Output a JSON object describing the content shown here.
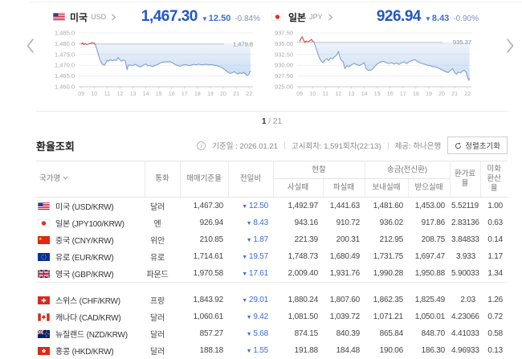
{
  "colors": {
    "price_blue": "#2257c4",
    "change_blue": "#3e6bd5",
    "pct_blue_gray": "#7f8fb5",
    "line_red": "#e0433a",
    "line_blue": "#7fa0d4",
    "fill_blue": "#9fc0e8",
    "ref_gray": "#bbbbbb"
  },
  "symbols": {
    "down_arrow": "▼"
  },
  "carousel": {
    "pagination": {
      "current": "1",
      "separator": "/",
      "total": "21"
    }
  },
  "chart_data": [
    {
      "type": "line",
      "country": "미국",
      "currency_code": "USD",
      "price": "1,467.30",
      "change": "12.50",
      "change_direction": "down",
      "change_percent": "-0.84%",
      "prev_close_label": "1,479.8",
      "prev_close": 1479.8,
      "flag": "us",
      "y_ticks": [
        "1,485.0",
        "1,480.0",
        "1,475.0",
        "1,470.0",
        "1,465.0",
        "1,460.0"
      ],
      "ylim": [
        1460,
        1485
      ],
      "x_ticks": [
        "09",
        "10",
        "11",
        "12",
        "13",
        "14",
        "15",
        "16",
        "17",
        "18",
        "19",
        "20",
        "21",
        "22"
      ],
      "xlim": [
        8.8,
        22.3
      ],
      "points": [
        [
          9.0,
          1479.9
        ],
        [
          9.1,
          1480.4
        ],
        [
          9.2,
          1479.6
        ],
        [
          9.3,
          1480.1
        ],
        [
          9.45,
          1479.5
        ],
        [
          9.6,
          1480.0
        ],
        [
          9.75,
          1480.3
        ],
        [
          9.9,
          1480.4
        ],
        [
          10.0,
          1480.2
        ],
        [
          10.1,
          1479.5
        ],
        [
          10.2,
          1477.5
        ],
        [
          10.35,
          1474.5
        ],
        [
          10.5,
          1471.8
        ],
        [
          10.65,
          1470.4
        ],
        [
          10.8,
          1470.0
        ],
        [
          10.9,
          1471.0
        ],
        [
          11.0,
          1472.4
        ],
        [
          11.1,
          1471.8
        ],
        [
          11.25,
          1472.6
        ],
        [
          11.4,
          1472.0
        ],
        [
          11.55,
          1472.5
        ],
        [
          11.7,
          1472.2
        ],
        [
          11.85,
          1473.6
        ],
        [
          11.95,
          1472.8
        ],
        [
          12.1,
          1471.9
        ],
        [
          12.25,
          1472.4
        ],
        [
          12.4,
          1472.1
        ],
        [
          12.5,
          1469.3
        ],
        [
          12.55,
          1467.9
        ],
        [
          12.65,
          1470.1
        ],
        [
          12.8,
          1470.0
        ],
        [
          13.0,
          1469.9
        ],
        [
          13.2,
          1470.4
        ],
        [
          13.4,
          1469.6
        ],
        [
          13.6,
          1469.2
        ],
        [
          13.8,
          1470.0
        ],
        [
          14.0,
          1470.6
        ],
        [
          14.15,
          1469.7
        ],
        [
          14.3,
          1469.9
        ],
        [
          14.5,
          1469.4
        ],
        [
          14.7,
          1469.8
        ],
        [
          14.9,
          1470.3
        ],
        [
          15.1,
          1471.0
        ],
        [
          15.3,
          1471.4
        ],
        [
          15.5,
          1471.6
        ],
        [
          15.7,
          1471.5
        ],
        [
          15.9,
          1471.6
        ],
        [
          16.1,
          1471.0
        ],
        [
          16.3,
          1470.2
        ],
        [
          16.5,
          1469.8
        ],
        [
          16.7,
          1469.6
        ],
        [
          16.9,
          1470.1
        ],
        [
          17.1,
          1470.3
        ],
        [
          17.3,
          1469.8
        ],
        [
          17.5,
          1470.0
        ],
        [
          17.7,
          1470.4
        ],
        [
          17.9,
          1470.2
        ],
        [
          18.1,
          1470.5
        ],
        [
          18.3,
          1470.2
        ],
        [
          18.5,
          1470.3
        ],
        [
          18.7,
          1470.4
        ],
        [
          18.9,
          1470.2
        ],
        [
          19.1,
          1470.3
        ],
        [
          19.3,
          1470.0
        ],
        [
          19.5,
          1469.8
        ],
        [
          19.7,
          1469.3
        ],
        [
          19.9,
          1468.9
        ],
        [
          20.1,
          1468.0
        ],
        [
          20.3,
          1467.0
        ],
        [
          20.5,
          1466.2
        ],
        [
          20.7,
          1466.5
        ],
        [
          20.85,
          1467.0
        ],
        [
          21.0,
          1466.3
        ],
        [
          21.15,
          1465.9
        ],
        [
          21.3,
          1466.5
        ],
        [
          21.45,
          1466.1
        ],
        [
          21.6,
          1466.7
        ],
        [
          21.75,
          1465.6
        ],
        [
          21.9,
          1465.3
        ],
        [
          22.0,
          1466.0
        ],
        [
          22.1,
          1467.3
        ]
      ]
    },
    {
      "type": "line",
      "country": "일본",
      "currency_code": "JPY",
      "price": "926.94",
      "change": "8.43",
      "change_direction": "down",
      "change_percent": "-0.90%",
      "prev_close_label": "935.37",
      "prev_close": 935.37,
      "flag": "jp",
      "y_ticks": [
        "937.50",
        "935.00",
        "932.50",
        "930.00",
        "927.50",
        "925.00"
      ],
      "ylim": [
        925,
        937.5
      ],
      "x_ticks": [
        "09",
        "10",
        "11",
        "12",
        "13",
        "14",
        "15",
        "16",
        "17",
        "18",
        "19",
        "20",
        "21",
        "22"
      ],
      "xlim": [
        8.8,
        22.3
      ],
      "points": [
        [
          9.0,
          935.6
        ],
        [
          9.1,
          936.2
        ],
        [
          9.2,
          936.6
        ],
        [
          9.3,
          935.8
        ],
        [
          9.4,
          935.3
        ],
        [
          9.5,
          935.6
        ],
        [
          9.6,
          935.4
        ],
        [
          9.7,
          935.5
        ],
        [
          9.8,
          935.7
        ],
        [
          9.9,
          936.0
        ],
        [
          10.0,
          935.6
        ],
        [
          10.1,
          935.4
        ],
        [
          10.2,
          934.5
        ],
        [
          10.35,
          933.2
        ],
        [
          10.5,
          931.9
        ],
        [
          10.65,
          931.0
        ],
        [
          10.8,
          930.6
        ],
        [
          10.95,
          931.2
        ],
        [
          11.1,
          931.5
        ],
        [
          11.25,
          931.1
        ],
        [
          11.4,
          931.7
        ],
        [
          11.55,
          931.5
        ],
        [
          11.7,
          932.0
        ],
        [
          11.85,
          932.3
        ],
        [
          12.0,
          933.2
        ],
        [
          12.1,
          932.0
        ],
        [
          12.2,
          931.2
        ],
        [
          12.35,
          930.9
        ],
        [
          12.5,
          929.2
        ],
        [
          12.65,
          929.9
        ],
        [
          12.8,
          929.6
        ],
        [
          13.0,
          930.1
        ],
        [
          13.2,
          930.4
        ],
        [
          13.4,
          930.2
        ],
        [
          13.6,
          929.9
        ],
        [
          13.8,
          930.2
        ],
        [
          14.0,
          930.6
        ],
        [
          14.15,
          929.2
        ],
        [
          14.3,
          928.8
        ],
        [
          14.5,
          928.8
        ],
        [
          14.7,
          929.3
        ],
        [
          14.9,
          930.0
        ],
        [
          15.1,
          930.5
        ],
        [
          15.3,
          930.8
        ],
        [
          15.5,
          930.9
        ],
        [
          15.7,
          930.6
        ],
        [
          15.9,
          930.4
        ],
        [
          16.1,
          930.6
        ],
        [
          16.3,
          930.3
        ],
        [
          16.5,
          930.5
        ],
        [
          16.7,
          930.2
        ],
        [
          16.9,
          930.6
        ],
        [
          17.1,
          930.8
        ],
        [
          17.3,
          930.4
        ],
        [
          17.5,
          930.9
        ],
        [
          17.7,
          931.1
        ],
        [
          17.9,
          931.3
        ],
        [
          18.1,
          930.9
        ],
        [
          18.3,
          930.6
        ],
        [
          18.5,
          930.4
        ],
        [
          18.7,
          930.2
        ],
        [
          18.9,
          930.0
        ],
        [
          19.1,
          929.9
        ],
        [
          19.3,
          929.7
        ],
        [
          19.5,
          929.6
        ],
        [
          19.7,
          929.4
        ],
        [
          19.9,
          929.1
        ],
        [
          20.1,
          928.8
        ],
        [
          20.3,
          928.5
        ],
        [
          20.5,
          928.3
        ],
        [
          20.7,
          928.8
        ],
        [
          20.85,
          929.2
        ],
        [
          21.0,
          928.3
        ],
        [
          21.15,
          927.9
        ],
        [
          21.3,
          928.4
        ],
        [
          21.45,
          928.2
        ],
        [
          21.6,
          928.6
        ],
        [
          21.75,
          928.8
        ],
        [
          21.9,
          928.3
        ],
        [
          22.0,
          927.2
        ],
        [
          22.1,
          926.5
        ],
        [
          22.15,
          926.9
        ]
      ]
    }
  ],
  "rates": {
    "title": "환율조회",
    "meta": {
      "base_date": "기준일 : 2026.01.21",
      "notice_round": "고시회차: 1,591회차(22:13)",
      "provider": "제공: 하나은행",
      "reset_sort": "정렬초기화"
    },
    "headers": {
      "country": "국가명",
      "currency": "통화",
      "base_rate": "매매기준율",
      "day_change": "전일비",
      "cash": "현찰",
      "cash_buy": "사실때",
      "cash_sell": "파실때",
      "wire": "송금(전신환)",
      "wire_send": "보내실때",
      "wire_receive": "받으실때",
      "fee_rate": "환가료율",
      "usd_conversion": "미화환산율"
    },
    "rows": [
      {
        "flag": "us",
        "name": "미국 (USD/KRW)",
        "currency": "달러",
        "base_rate": "1,467.30",
        "change": "12.50",
        "change_direction": "down",
        "cash_buy": "1,492.97",
        "cash_sell": "1,441.63",
        "wire_send": "1,481.60",
        "wire_receive": "1,453.00",
        "fee_rate": "5.52119",
        "usd_conversion": "1.00"
      },
      {
        "flag": "jp",
        "name": "일본 (JPY100/KRW)",
        "currency": "엔",
        "base_rate": "926.94",
        "change": "8.43",
        "change_direction": "down",
        "cash_buy": "943.16",
        "cash_sell": "910.72",
        "wire_send": "936.02",
        "wire_receive": "917.86",
        "fee_rate": "2.83136",
        "usd_conversion": "0.63"
      },
      {
        "flag": "cn",
        "name": "중국 (CNY/KRW)",
        "currency": "위안",
        "base_rate": "210.85",
        "change": "1.87",
        "change_direction": "down",
        "cash_buy": "221.39",
        "cash_sell": "200.31",
        "wire_send": "212.95",
        "wire_receive": "208.75",
        "fee_rate": "3.84833",
        "usd_conversion": "0.14"
      },
      {
        "flag": "eu",
        "name": "유로 (EUR/KRW)",
        "currency": "유로",
        "base_rate": "1,714.61",
        "change": "19.57",
        "change_direction": "down",
        "cash_buy": "1,748.73",
        "cash_sell": "1,680.49",
        "wire_send": "1,731.75",
        "wire_receive": "1,697.47",
        "fee_rate": "3.933",
        "usd_conversion": "1.17"
      },
      {
        "flag": "gb",
        "name": "영국 (GBP/KRW)",
        "currency": "파운드",
        "base_rate": "1,970.58",
        "change": "17.61",
        "change_direction": "down",
        "cash_buy": "2,009.40",
        "cash_sell": "1,931.76",
        "wire_send": "1,990.28",
        "wire_receive": "1,950.88",
        "fee_rate": "5.90033",
        "usd_conversion": "1.34"
      },
      {
        "flag": "ch",
        "name": "스위스 (CHF/KRW)",
        "currency": "프랑",
        "base_rate": "1,843.92",
        "change": "29.01",
        "change_direction": "down",
        "cash_buy": "1,880.24",
        "cash_sell": "1,807.60",
        "wire_send": "1,862.35",
        "wire_receive": "1,825.49",
        "fee_rate": "2.03",
        "usd_conversion": "1.26"
      },
      {
        "flag": "ca",
        "name": "캐나다 (CAD/KRW)",
        "currency": "달러",
        "base_rate": "1,060.61",
        "change": "9.42",
        "change_direction": "down",
        "cash_buy": "1,081.50",
        "cash_sell": "1,039.72",
        "wire_send": "1,071.21",
        "wire_receive": "1,050.01",
        "fee_rate": "4.23066",
        "usd_conversion": "0.72"
      },
      {
        "flag": "nz",
        "name": "뉴질랜드 (NZD/KRW)",
        "currency": "달러",
        "base_rate": "857.27",
        "change": "5.68",
        "change_direction": "down",
        "cash_buy": "874.15",
        "cash_sell": "840.39",
        "wire_send": "865.84",
        "wire_receive": "848.70",
        "fee_rate": "4.41033",
        "usd_conversion": "0.58"
      },
      {
        "flag": "hk",
        "name": "홍콩 (HKD/KRW)",
        "currency": "달러",
        "base_rate": "188.18",
        "change": "1.55",
        "change_direction": "down",
        "cash_buy": "191.88",
        "cash_sell": "184.48",
        "wire_send": "190.06",
        "wire_receive": "186.30",
        "fee_rate": "4.96933",
        "usd_conversion": "0.13"
      }
    ],
    "group_break_index": 5
  }
}
